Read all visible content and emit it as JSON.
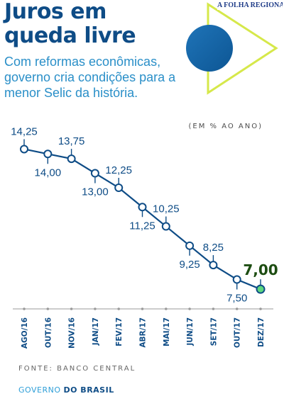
{
  "title_line1": "Juros em",
  "title_line2": "queda livre",
  "subtitle": "Com reformas econômicas, governo cria condições para a menor Selic da história.",
  "masthead": "A FOLHA REGIONAL",
  "unit_label": "(EM % AO ANO)",
  "source": "FONTE: BANCO CENTRAL",
  "brand_part1": "GOVERNO",
  "brand_part2": "DO BRASIL",
  "colors": {
    "line": "#0e4c86",
    "point_fill": "#ffffff",
    "highlight_fill": "#5dd87e",
    "highlight_label": "#1d4d12",
    "title": "#0e4c86",
    "subtitle": "#2a8fc8",
    "triangle": "#d6e84a"
  },
  "chart_data": {
    "type": "line",
    "categories": [
      "AGO/16",
      "OUT/16",
      "NOV/16",
      "JAN/17",
      "FEV/17",
      "ABR/17",
      "MAI/17",
      "JUN/17",
      "SET/17",
      "OUT/17",
      "DEZ/17"
    ],
    "series": [
      {
        "values": [
          14.25,
          14.0,
          13.75,
          13.0,
          12.25,
          11.25,
          10.25,
          9.25,
          8.25,
          7.5,
          7.0
        ],
        "labels": [
          "14,25",
          "14,00",
          "13,75",
          "13,00",
          "12,25",
          "11,25",
          "10,25",
          "9,25",
          "8,25",
          "7,50",
          "7,00"
        ],
        "label_position": [
          "above",
          "below",
          "above",
          "below",
          "above",
          "below",
          "above",
          "below",
          "above",
          "below",
          "above"
        ]
      }
    ],
    "highlight_index": 10,
    "ylim": [
      6.2,
      15
    ],
    "grid": false
  }
}
